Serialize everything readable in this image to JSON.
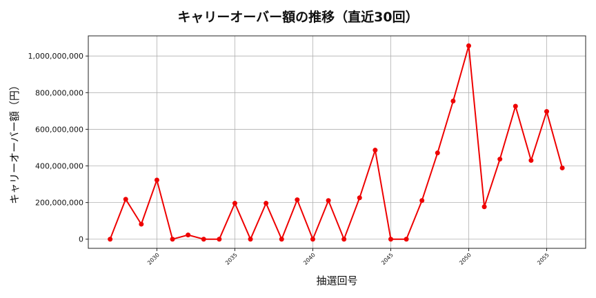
{
  "chart_data": {
    "type": "line",
    "title": "キャリーオーバー額の推移（直近30回）",
    "xlabel": "抽選回号",
    "ylabel": "キャリーオーバー額（円）",
    "xlim": [
      2025.6,
      2057.5
    ],
    "ylim": [
      -50000000,
      1110000000
    ],
    "x_ticks": [
      2030,
      2035,
      2040,
      2045,
      2050,
      2055
    ],
    "y_ticks": [
      0,
      200000000,
      400000000,
      600000000,
      800000000,
      1000000000
    ],
    "y_tick_labels": [
      "0",
      "200,000,000",
      "400,000,000",
      "600,000,000",
      "800,000,000",
      "1,000,000,000"
    ],
    "grid": true,
    "series": [
      {
        "color": "#ee0000",
        "x": [
          2027,
          2028,
          2029,
          2030,
          2031,
          2032,
          2033,
          2034,
          2035,
          2036,
          2037,
          2038,
          2039,
          2040,
          2041,
          2042,
          2043,
          2044,
          2045,
          2046,
          2047,
          2048,
          2049,
          2050,
          2051,
          2052,
          2053,
          2054,
          2055,
          2056
        ],
        "y": [
          0,
          218000000,
          82000000,
          323000000,
          0,
          23000000,
          0,
          0,
          196000000,
          0,
          196000000,
          0,
          215000000,
          0,
          211000000,
          0,
          226000000,
          486000000,
          0,
          0,
          211000000,
          471000000,
          754000000,
          1056000000,
          177000000,
          437000000,
          726000000,
          430000000,
          697000000,
          389000000
        ]
      }
    ]
  }
}
